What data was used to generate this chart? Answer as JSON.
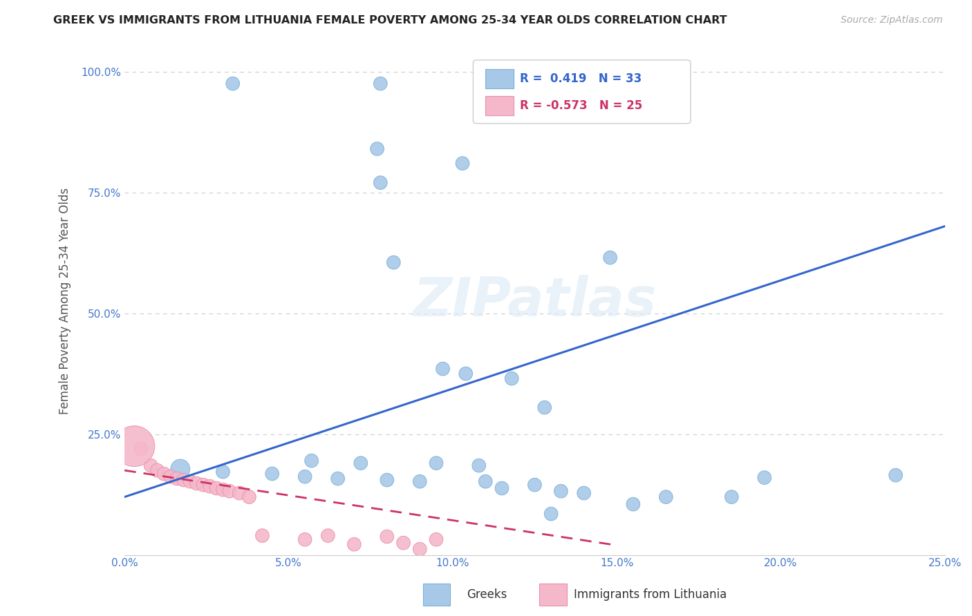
{
  "title": "GREEK VS IMMIGRANTS FROM LITHUANIA FEMALE POVERTY AMONG 25-34 YEAR OLDS CORRELATION CHART",
  "source": "Source: ZipAtlas.com",
  "ylabel": "Female Poverty Among 25-34 Year Olds",
  "xlim": [
    0.0,
    0.25
  ],
  "ylim": [
    0.0,
    1.05
  ],
  "xticks": [
    0.0,
    0.05,
    0.1,
    0.15,
    0.2,
    0.25
  ],
  "yticks": [
    0.25,
    0.5,
    0.75,
    1.0
  ],
  "xticklabels": [
    "0.0%",
    "5.0%",
    "10.0%",
    "15.0%",
    "20.0%",
    "25.0%"
  ],
  "yticklabels": [
    "25.0%",
    "50.0%",
    "75.0%",
    "100.0%"
  ],
  "background_color": "#ffffff",
  "greek_color": "#a8c8e8",
  "greek_edge_color": "#7ab0d8",
  "lith_color": "#f4b8ca",
  "lith_edge_color": "#e890a8",
  "greek_line_color": "#3366cc",
  "lith_line_color": "#cc3366",
  "greek_scatter": [
    [
      0.033,
      0.975
    ],
    [
      0.078,
      0.975
    ],
    [
      0.077,
      0.84
    ],
    [
      0.103,
      0.81
    ],
    [
      0.078,
      0.77
    ],
    [
      0.082,
      0.605
    ],
    [
      0.148,
      0.615
    ],
    [
      0.097,
      0.385
    ],
    [
      0.104,
      0.375
    ],
    [
      0.118,
      0.365
    ],
    [
      0.057,
      0.195
    ],
    [
      0.072,
      0.19
    ],
    [
      0.095,
      0.19
    ],
    [
      0.108,
      0.185
    ],
    [
      0.017,
      0.178
    ],
    [
      0.03,
      0.172
    ],
    [
      0.045,
      0.168
    ],
    [
      0.055,
      0.162
    ],
    [
      0.065,
      0.158
    ],
    [
      0.08,
      0.155
    ],
    [
      0.09,
      0.152
    ],
    [
      0.11,
      0.152
    ],
    [
      0.125,
      0.145
    ],
    [
      0.115,
      0.138
    ],
    [
      0.133,
      0.132
    ],
    [
      0.14,
      0.128
    ],
    [
      0.165,
      0.12
    ],
    [
      0.185,
      0.12
    ],
    [
      0.155,
      0.105
    ],
    [
      0.13,
      0.085
    ],
    [
      0.195,
      0.16
    ],
    [
      0.235,
      0.165
    ],
    [
      0.128,
      0.305
    ]
  ],
  "greek_sizes": [
    200,
    200,
    200,
    200,
    200,
    200,
    200,
    200,
    200,
    200,
    200,
    200,
    200,
    200,
    400,
    200,
    200,
    200,
    200,
    200,
    200,
    200,
    200,
    200,
    200,
    200,
    200,
    200,
    200,
    200,
    200,
    200,
    200
  ],
  "lith_scatter": [
    [
      0.005,
      0.22
    ],
    [
      0.008,
      0.185
    ],
    [
      0.01,
      0.175
    ],
    [
      0.012,
      0.168
    ],
    [
      0.014,
      0.162
    ],
    [
      0.016,
      0.158
    ],
    [
      0.018,
      0.155
    ],
    [
      0.02,
      0.152
    ],
    [
      0.022,
      0.148
    ],
    [
      0.024,
      0.145
    ],
    [
      0.026,
      0.142
    ],
    [
      0.028,
      0.138
    ],
    [
      0.03,
      0.135
    ],
    [
      0.032,
      0.132
    ],
    [
      0.035,
      0.128
    ],
    [
      0.038,
      0.12
    ],
    [
      0.042,
      0.04
    ],
    [
      0.055,
      0.032
    ],
    [
      0.062,
      0.04
    ],
    [
      0.07,
      0.022
    ],
    [
      0.08,
      0.038
    ],
    [
      0.085,
      0.025
    ],
    [
      0.09,
      0.012
    ],
    [
      0.095,
      0.032
    ],
    [
      0.003,
      0.225
    ]
  ],
  "lith_sizes": [
    200,
    200,
    200,
    200,
    200,
    200,
    200,
    200,
    200,
    200,
    200,
    200,
    200,
    200,
    200,
    200,
    200,
    200,
    200,
    200,
    200,
    200,
    200,
    200,
    1800
  ],
  "greek_line_x": [
    0.0,
    0.25
  ],
  "greek_line_y": [
    0.12,
    0.68
  ],
  "lith_line_x": [
    0.0,
    0.15
  ],
  "lith_line_y": [
    0.175,
    0.02
  ]
}
